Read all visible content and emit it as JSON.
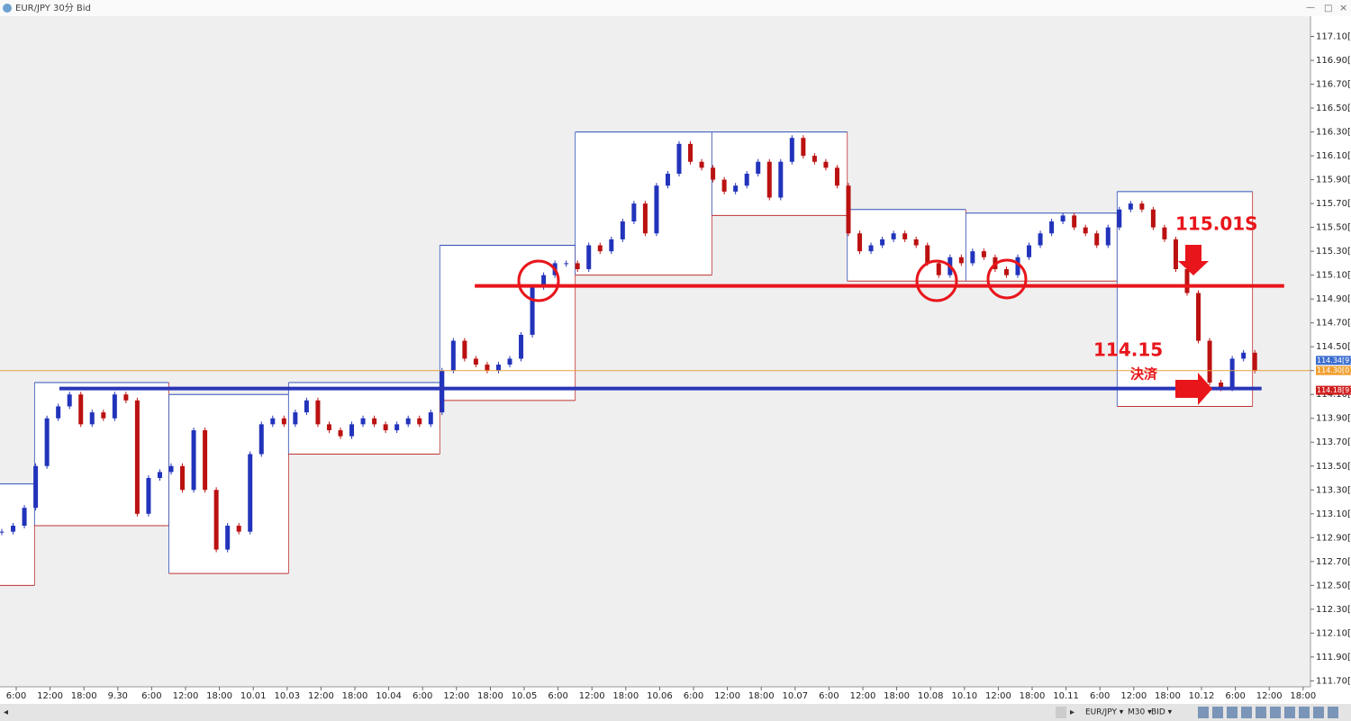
{
  "chart_data": {
    "type": "candlestick",
    "title": "EUR/JPY 30分 Bid",
    "close": [
      112.95,
      113.0,
      113.15,
      113.5,
      113.9,
      114.0,
      114.1,
      113.85,
      113.95,
      113.9,
      114.1,
      114.05,
      113.1,
      113.4,
      113.45,
      113.5,
      113.3,
      113.8,
      113.3,
      112.8,
      113.0,
      112.95,
      113.6,
      113.85,
      113.9,
      113.85,
      113.95,
      114.05,
      113.85,
      113.8,
      113.75,
      113.85,
      113.9,
      113.85,
      113.8,
      113.85,
      113.9,
      113.85,
      113.95,
      114.3,
      114.55,
      114.4,
      114.35,
      114.3,
      114.35,
      114.4,
      114.6,
      115.0,
      115.1,
      115.2,
      115.2,
      115.15,
      115.35,
      115.3,
      115.4,
      115.55,
      115.7,
      115.45,
      115.85,
      115.95,
      116.2,
      116.05,
      116.0,
      115.9,
      115.8,
      115.85,
      115.95,
      116.05,
      115.75,
      116.05,
      116.25,
      116.1,
      116.05,
      116.0,
      115.85,
      115.45,
      115.3,
      115.35,
      115.4,
      115.45,
      115.4,
      115.35,
      115.2,
      115.1,
      115.25,
      115.2,
      115.3,
      115.25,
      115.15,
      115.1,
      115.25,
      115.35,
      115.45,
      115.55,
      115.6,
      115.5,
      115.45,
      115.35,
      115.5,
      115.65,
      115.7,
      115.65,
      115.5,
      115.4,
      115.15,
      114.95,
      114.55,
      114.2,
      114.15,
      114.4,
      114.45,
      114.3
    ],
    "up_color": "#2233bb",
    "down_color": "#bb1111",
    "ylim": [
      111.65,
      117.27
    ],
    "yticks": [
      {
        "value": 111.7,
        "label": "111.70[0"
      },
      {
        "value": 111.9,
        "label": "111.90[0"
      },
      {
        "value": 112.1,
        "label": "112.10[0"
      },
      {
        "value": 112.3,
        "label": "112.30[0"
      },
      {
        "value": 112.5,
        "label": "112.50[0"
      },
      {
        "value": 112.7,
        "label": "112.70[0"
      },
      {
        "value": 112.9,
        "label": "112.90[0"
      },
      {
        "value": 113.1,
        "label": "113.10[0"
      },
      {
        "value": 113.3,
        "label": "113.30[0"
      },
      {
        "value": 113.5,
        "label": "113.50[0"
      },
      {
        "value": 113.7,
        "label": "113.70[0"
      },
      {
        "value": 113.9,
        "label": "113.90[0"
      },
      {
        "value": 114.1,
        "label": "114.10[0"
      },
      {
        "value": 114.3,
        "label": "114.30[0"
      },
      {
        "value": 114.5,
        "label": "114.50[0"
      },
      {
        "value": 114.7,
        "label": "114.70[0"
      },
      {
        "value": 114.9,
        "label": "114.90[0"
      },
      {
        "value": 115.1,
        "label": "115.10[0"
      },
      {
        "value": 115.3,
        "label": "115.30[0"
      },
      {
        "value": 115.5,
        "label": "115.50[0"
      },
      {
        "value": 115.7,
        "label": "115.70[0"
      },
      {
        "value": 115.9,
        "label": "115.90[0"
      },
      {
        "value": 116.1,
        "label": "116.10[0"
      },
      {
        "value": 116.3,
        "label": "116.30[0"
      },
      {
        "value": 116.5,
        "label": "116.50[0"
      },
      {
        "value": 116.7,
        "label": "116.70[0"
      },
      {
        "value": 116.9,
        "label": "116.90[0"
      },
      {
        "value": 117.1,
        "label": "117.10[0"
      }
    ],
    "categories": [
      "6:00",
      "12:00",
      "18:00",
      "9.30",
      "6:00",
      "12:00",
      "18:00",
      "10.01",
      "10.03",
      "12:00",
      "18:00",
      "10.04",
      "6:00",
      "12:00",
      "18:00",
      "10.05",
      "6:00",
      "12:00",
      "18:00",
      "10.06",
      "6:00",
      "12:00",
      "18:00",
      "10.07",
      "6:00",
      "12:00",
      "18:00",
      "10.08",
      "10.10",
      "12:00",
      "18:00",
      "10.11",
      "6:00",
      "12:00",
      "18:00",
      "10.12",
      "6:00",
      "12:00",
      "18:00"
    ],
    "boxes": [
      {
        "high": 113.35,
        "low": 112.5,
        "from": -0.2,
        "to": 2.9
      },
      {
        "high": 114.2,
        "low": 113.0,
        "from": 2.9,
        "to": 14.8
      },
      {
        "high": 114.1,
        "low": 112.6,
        "from": 14.8,
        "to": 25.4
      },
      {
        "high": 114.2,
        "low": 113.6,
        "from": 25.4,
        "to": 38.8
      },
      {
        "high": 115.35,
        "low": 114.05,
        "from": 38.8,
        "to": 50.8
      },
      {
        "high": 116.3,
        "low": 115.1,
        "from": 50.8,
        "to": 62.9
      },
      {
        "high": 116.3,
        "low": 115.6,
        "from": 62.9,
        "to": 74.9
      },
      {
        "high": 115.65,
        "low": 115.05,
        "from": 74.9,
        "to": 85.4
      },
      {
        "high": 115.62,
        "low": 115.05,
        "from": 85.4,
        "to": 98.8
      },
      {
        "high": 115.8,
        "low": 114.0,
        "from": 98.8,
        "to": 110.8
      }
    ],
    "lines": [
      {
        "value": 115.01,
        "color": "#e8151b",
        "from": 41.9,
        "to": 113.6
      },
      {
        "value": 114.15,
        "color": "#2a36b8",
        "from": 5.1,
        "to": 111.6
      },
      {
        "value": 114.3,
        "color": "#e8a040",
        "from": -0.2,
        "to": 116
      }
    ],
    "price_labels": [
      {
        "value": 114.34,
        "label": "114.34[9]",
        "color": "#3d6fd0"
      },
      {
        "value": 114.3,
        "label": "114.30[0]",
        "color": "#f0a030"
      },
      {
        "value": 114.18,
        "label": "114.18[9]",
        "color": "#d02020"
      }
    ],
    "annotations": [
      "115.01S",
      "114.15",
      "決済"
    ]
  },
  "toolbar": {
    "symbol": "EUR/JPY ▾",
    "period": "M30 ▾",
    "price": "BID ▾"
  }
}
